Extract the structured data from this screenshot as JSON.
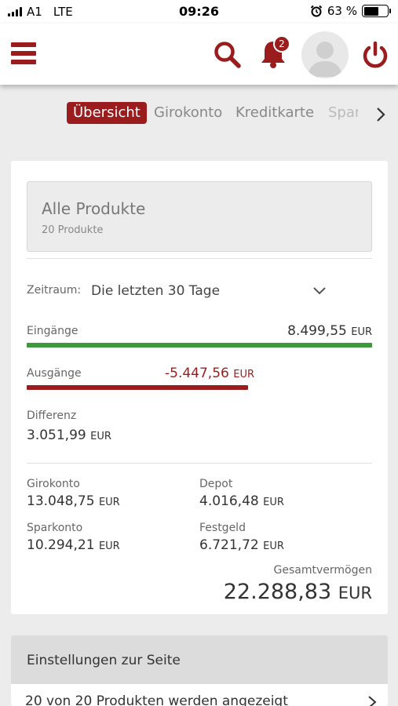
{
  "status": {
    "carrier": "A1",
    "network": "LTE",
    "time": "09:26",
    "battery": "63 %",
    "battery_level": 0.63
  },
  "header": {
    "notification_count": "2",
    "icons": [
      "menu-icon",
      "search-icon",
      "bell-icon",
      "avatar",
      "power-icon"
    ]
  },
  "tabs": [
    {
      "label": "Übersicht",
      "active": true
    },
    {
      "label": "Girokonto",
      "active": false
    },
    {
      "label": "Kreditkarte",
      "active": false
    },
    {
      "label": "Spar",
      "active": false
    }
  ],
  "products": {
    "title": "Alle Produkte",
    "count": "20 Produkte"
  },
  "period": {
    "label": "Zeitraum:",
    "value": "Die letzten 30 Tage"
  },
  "income": {
    "label": "Eingänge",
    "amount": "8.499,55",
    "currency": "EUR"
  },
  "expenses": {
    "label": "Ausgänge",
    "amount": "-5.447,56",
    "currency": "EUR"
  },
  "difference": {
    "label": "Differenz",
    "amount": "3.051,99",
    "currency": "EUR"
  },
  "accounts": [
    {
      "label": "Girokonto",
      "amount": "13.048,75",
      "currency": "EUR"
    },
    {
      "label": "Depot",
      "amount": "4.016,48",
      "currency": "EUR"
    },
    {
      "label": "Sparkonto",
      "amount": "10.294,21",
      "currency": "EUR"
    },
    {
      "label": "Festgeld",
      "amount": "6.721,72",
      "currency": "EUR"
    }
  ],
  "total": {
    "label": "Gesamtvermögen",
    "amount": "22.288,83",
    "currency": "EUR"
  },
  "settings": {
    "title": "Einstellungen zur Seite",
    "row_text": "20 von 20 Produkten werden angezeigt"
  },
  "colors": {
    "brand": "#9b1c1c",
    "income_bar": "#3c9a3c",
    "expense_bar": "#9b1c1c"
  }
}
